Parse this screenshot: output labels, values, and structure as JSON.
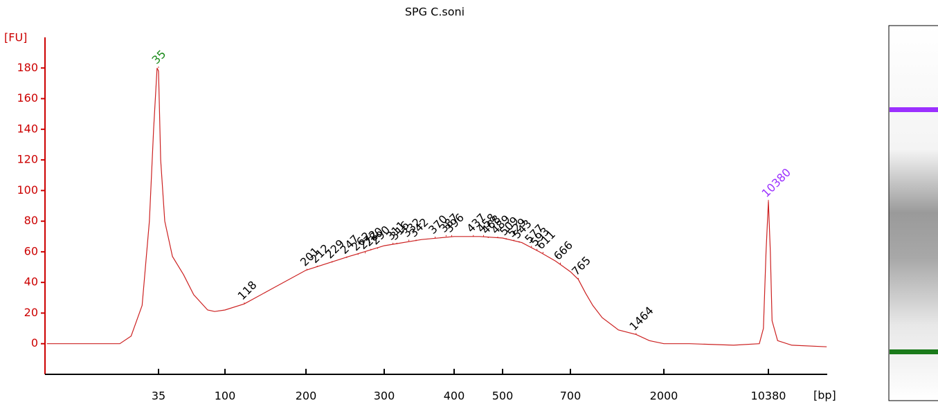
{
  "chart_data": {
    "type": "line",
    "title": "SPG C.soni",
    "y_label": "[FU]",
    "x_label": "[bp]",
    "color": "#cc2020",
    "axis_color": "#cc0000",
    "label_color": "#000000",
    "x": [
      6,
      10,
      15,
      19,
      22.7,
      27,
      30.3,
      32.4,
      34.2,
      35,
      36.2,
      38.6,
      43.6,
      52,
      61,
      76,
      85,
      100,
      118,
      150,
      200,
      250,
      300,
      350,
      400,
      450,
      500,
      550,
      600,
      650,
      700,
      765,
      830,
      900,
      1000,
      1200,
      1464,
      1700,
      2000,
      3000,
      6000,
      9000,
      9600,
      10000,
      10380,
      10700,
      11000,
      12000,
      15000,
      26000
    ],
    "values": [
      0,
      0,
      0,
      0,
      5,
      25,
      80,
      140,
      180,
      178,
      120,
      80,
      57,
      45,
      32,
      22,
      21,
      22,
      26,
      36,
      48,
      57,
      64,
      68,
      70,
      70,
      69,
      66,
      60,
      54,
      47,
      42,
      33,
      25,
      17,
      9,
      6,
      2,
      0,
      0,
      -1,
      0,
      10,
      60,
      93,
      60,
      15,
      2,
      -1,
      -2
    ],
    "xlim": [
      6,
      26000
    ],
    "ylim": [
      -20,
      200
    ],
    "xticks": [
      35,
      100,
      200,
      300,
      400,
      500,
      700,
      2000,
      10380
    ],
    "yticks": [
      0,
      20,
      40,
      60,
      80,
      100,
      120,
      140,
      160,
      180
    ],
    "peaks": [
      {
        "x": 35,
        "y": 180,
        "color": "#1a8a1a"
      },
      {
        "x": 118,
        "y": 26
      },
      {
        "x": 201,
        "y": 48
      },
      {
        "x": 212,
        "y": 50
      },
      {
        "x": 229,
        "y": 53
      },
      {
        "x": 247,
        "y": 56
      },
      {
        "x": 262,
        "y": 58
      },
      {
        "x": 272,
        "y": 59
      },
      {
        "x": 280,
        "y": 61
      },
      {
        "x": 290,
        "y": 62
      },
      {
        "x": 311,
        "y": 65
      },
      {
        "x": 316,
        "y": 65
      },
      {
        "x": 332,
        "y": 67
      },
      {
        "x": 342,
        "y": 67
      },
      {
        "x": 370,
        "y": 69
      },
      {
        "x": 387,
        "y": 70
      },
      {
        "x": 396,
        "y": 70
      },
      {
        "x": 437,
        "y": 70
      },
      {
        "x": 458,
        "y": 70
      },
      {
        "x": 468,
        "y": 69
      },
      {
        "x": 489,
        "y": 69
      },
      {
        "x": 509,
        "y": 68
      },
      {
        "x": 529,
        "y": 67
      },
      {
        "x": 543,
        "y": 66
      },
      {
        "x": 577,
        "y": 63
      },
      {
        "x": 593,
        "y": 61
      },
      {
        "x": 611,
        "y": 59
      },
      {
        "x": 666,
        "y": 52
      },
      {
        "x": 765,
        "y": 42
      },
      {
        "x": 1464,
        "y": 6
      },
      {
        "x": 10380,
        "y": 93,
        "color": "#9b30ff"
      }
    ]
  }
}
